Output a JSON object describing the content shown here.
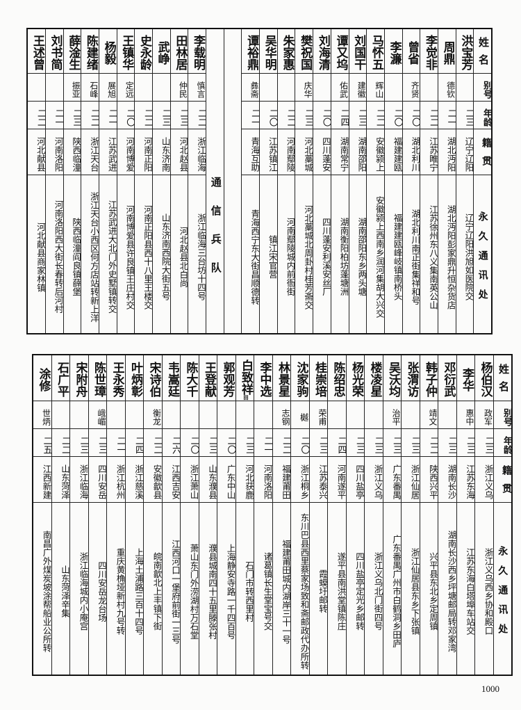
{
  "headers": {
    "name": "姓名",
    "alias": "别号",
    "age": "年龄",
    "origin": "籍贯",
    "address": "永久通讯处"
  },
  "top_table": {
    "section_label": "通信兵队",
    "rows_before_section": [
      {
        "name": "洪宝芳",
        "alias": "",
        "age": "二三",
        "origin": "辽宁辽阳",
        "address": "辽宁辽阳洪旭如医院交"
      },
      {
        "name": "周鼎",
        "alias": "德钦",
        "age": "二一",
        "origin": "湖北沔阳",
        "address": "湖北沔阳彭家鼎升恒杂货店"
      },
      {
        "name": "李觉非",
        "alias": "",
        "age": "二二",
        "origin": "江苏睢宁",
        "address": "江苏徐州东八义集南英公山"
      },
      {
        "name": "曾省",
        "alias": "齐贤",
        "age": "二〇",
        "origin": "湖北利川",
        "address": "湖北利川南正街集祥和号"
      },
      {
        "name": "李濂",
        "alias": "",
        "age": "二〇",
        "origin": "福建建瓯",
        "address": "福建建瓯峰岐镇南桥头"
      },
      {
        "name": "马怀五",
        "alias": "辉山",
        "age": "二二",
        "origin": "安徽颍上",
        "address": "安徽颍上西南乡润河集胡大兴交"
      },
      {
        "name": "刘国干",
        "alias": "建徽",
        "age": "二三",
        "origin": "湖南邵阳",
        "address": "湖南邵阳东乡两头塘"
      },
      {
        "name": "谭又坞",
        "alias": "佑武",
        "age": "二四",
        "origin": "湖南常宁",
        "address": "湖南衡阳柏坊蓬塘洲"
      },
      {
        "name": "刘海清",
        "alias": "",
        "age": "二〇",
        "origin": "四川蓬安",
        "address": "四川蓬安利溪安丝厂"
      },
      {
        "name": "樊祝国",
        "alias": "庆华",
        "age": "二三",
        "origin": "河北藁城",
        "address": "河北藁城北周卦村桂芳斋交"
      },
      {
        "name": "朱家惠",
        "alias": "",
        "age": "二二",
        "origin": "河南鄢陵",
        "address": "河南鄢陵城内前衙街"
      },
      {
        "name": "吴华明",
        "alias": "",
        "age": "二〇",
        "origin": "江苏镇江",
        "address": "镇江宋官营"
      },
      {
        "name": "谭裕鼎",
        "alias": "彝斋",
        "age": "二一",
        "origin": "青海互助",
        "address": "青海西宁东大街昌顺德转"
      }
    ],
    "rows_after_section": [
      {
        "name": "李载明",
        "alias": "慎言",
        "age": "二二",
        "origin": "浙江临海",
        "address": "浙江临海三台坊十四号"
      },
      {
        "name": "田林居",
        "alias": "仲民",
        "age": "二三",
        "origin": "河北赵县",
        "address": "河北赵县北白尚"
      },
      {
        "name": "武峥",
        "alias": "",
        "age": "二三",
        "origin": "山东济南",
        "address": "山东济南西院大街五号"
      },
      {
        "name": "史永龄",
        "alias": "",
        "age": "二二",
        "origin": "河南正阳",
        "address": "河南正阳县西十八里王楼交"
      },
      {
        "name": "王镇华",
        "alias": "定远",
        "age": "二〇",
        "origin": "河南博爱",
        "address": "河南博爱县许良镇王庄村交"
      },
      {
        "name": "杨毅",
        "alias": "展旭",
        "age": "二一",
        "origin": "江苏武进",
        "address": "江苏武进大北门外史墅镇转交"
      },
      {
        "name": "陈建绪",
        "alias": "石峰",
        "age": "二二",
        "origin": "浙江天台",
        "address": "浙江天台小西区何方店站转新上洋"
      },
      {
        "name": "薛淦生",
        "alias": "振亚",
        "age": "二三",
        "origin": "陕西临潼",
        "address": "陕西临潼阎良镇薛堡"
      },
      {
        "name": "刘书简",
        "alias": "",
        "age": "二一",
        "origin": "河南洛阳",
        "address": "河南洛阳西大街长春转后河村"
      },
      {
        "name": "王述曾",
        "alias": "",
        "age": "二二",
        "origin": "河北献县",
        "address": "河北献县商家林镇"
      }
    ]
  },
  "bottom_table": {
    "rows": [
      {
        "name": "杨伯汉",
        "alias": "政军",
        "age": "二三",
        "origin": "浙江义乌",
        "address": "浙江义乌西乡协和殿口"
      },
      {
        "name": "李华",
        "alias": "惠中",
        "age": "二三",
        "origin": "江苏东海",
        "address": "江苏东海白塔埠车站交"
      },
      {
        "name": "邓衍武",
        "alias": "",
        "age": "二三",
        "origin": "湖南长沙",
        "address": "湖南长沙西乡坪塘邮局转邓家湾"
      },
      {
        "name": "韩子仲",
        "alias": "靖文",
        "age": "二二",
        "origin": "陕西兴平",
        "address": "兴平县东北乡定周镇"
      },
      {
        "name": "张渭访",
        "alias": "",
        "age": "二三",
        "origin": "浙江仙居",
        "address": "浙江仙居县东乡下张镇"
      },
      {
        "name": "吴沃均",
        "alias": "治平",
        "age": "二三",
        "origin": "广东番禺",
        "address": "广东番禺广州市白鹤洞乡田庐"
      },
      {
        "name": "楼凌星",
        "alias": "",
        "age": "二三",
        "origin": "浙江义乌",
        "address": "浙江义乌北门街四号"
      },
      {
        "name": "杨光荣",
        "alias": "",
        "age": "二三",
        "origin": "四川盐亭",
        "address": "四川盐亭定光乡邮转"
      },
      {
        "name": "陈绍忠",
        "alias": "",
        "age": "二四",
        "origin": "河南遂平",
        "address": "遂平县南洪堂镇陈庄"
      },
      {
        "name": "桂崇培",
        "alias": "荣甫",
        "age": "二三",
        "origin": "江苏泰兴",
        "address": "霞蟆圩邮转"
      },
      {
        "name": "沈家驹",
        "alias": "樾",
        "age": "二〇",
        "origin": "浙江桐乡",
        "address": "东川巴县西里蔡家场致和斋邮政代办所转"
      },
      {
        "name": "林景星",
        "alias": "志钢",
        "age": "二二",
        "origin": "福建莆田",
        "address": "福建莆田城内湖岸三十一号"
      },
      {
        "name": "李中选",
        "alias": "",
        "age": "二一",
        "origin": "河南洛阳",
        "address": "诸葛镇长生堂宝号交"
      },
      {
        "name": "白致祥",
        "mark": "回",
        "alias": "",
        "age": "二三",
        "origin": "河北获鹿",
        "address": "石门市转西里村"
      },
      {
        "name": "郭观芳",
        "alias": "",
        "age": "二〇",
        "origin": "广东中山",
        "address": "上海静安寺路一千四百号"
      },
      {
        "name": "王登献",
        "alias": "",
        "age": "二三",
        "origin": "山东濮县",
        "address": "濮县城南四十五里滕张村"
      },
      {
        "name": "陈大千",
        "alias": "",
        "age": "二〇",
        "origin": "浙江萧山",
        "address": "萧山东门外涝湖村万石堂"
      },
      {
        "name": "韦嵩廷",
        "alias": "",
        "age": "二六",
        "origin": "江西吉安",
        "address": "江西河口一堡府前街一三号"
      },
      {
        "name": "宋诗伯",
        "alias": "衡龙",
        "age": "二二",
        "origin": "安徽歙县",
        "address": "皖南歙北上丰镇下街"
      },
      {
        "name": "叶炳彰",
        "alias": "",
        "age": "二四",
        "origin": "浙江慈溪",
        "address": "上海土浦路三百十四号"
      },
      {
        "name": "王永秀",
        "alias": "",
        "age": "二一",
        "origin": "浙江杭州",
        "address": "重庆黄桷垭新村九号转"
      },
      {
        "name": "陈世璋",
        "alias": "峨嵋",
        "age": "二三",
        "origin": "四川安岳",
        "address": "四川安岳龙台场"
      },
      {
        "name": "宋附舟",
        "alias": "",
        "age": "二三",
        "origin": "浙江临海",
        "address": "浙江临海城内小庵宫"
      },
      {
        "name": "石广平",
        "alias": "",
        "age": "二二",
        "origin": "山东菏泽",
        "address": "山东菏泽辛集"
      },
      {
        "name": "涂修",
        "alias": "世炳",
        "age": "二五",
        "origin": "江西新建",
        "address": "南昌广外煤炭坡涂帮船业公所转"
      }
    ]
  },
  "page_number": "1000"
}
